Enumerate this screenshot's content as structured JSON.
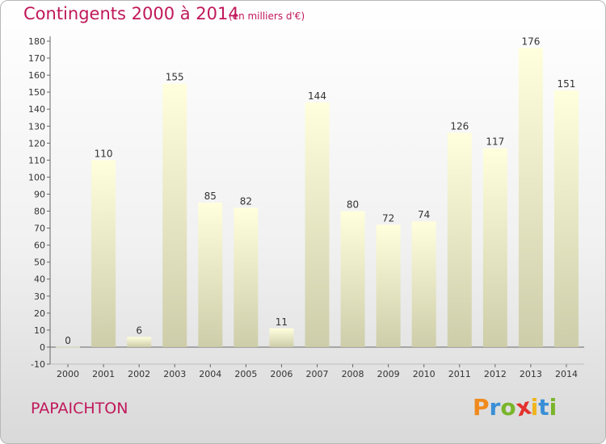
{
  "header": {
    "title": "Contingents 2000 à 2014",
    "subtitle": "(en milliers d'€)"
  },
  "footer": {
    "place": "PAPAICHTON",
    "logo_letters": [
      {
        "ch": "P",
        "color": "#f08a1c"
      },
      {
        "ch": "r",
        "color": "#3a8fd6"
      },
      {
        "ch": "o",
        "color": "#79b52a"
      },
      {
        "ch": "x",
        "color": "#e3312d"
      },
      {
        "ch": "i",
        "color": "#f0b41c"
      },
      {
        "ch": "t",
        "color": "#3a8fd6"
      },
      {
        "ch": "i",
        "color": "#79b52a"
      }
    ]
  },
  "chart_data": {
    "type": "bar",
    "title": "Contingents 2000 à 2014",
    "subtitle": "(en milliers d'€)",
    "categories": [
      "2000",
      "2001",
      "2002",
      "2003",
      "2004",
      "2005",
      "2006",
      "2007",
      "2008",
      "2009",
      "2010",
      "2011",
      "2012",
      "2013",
      "2014"
    ],
    "values": [
      0,
      110,
      6,
      155,
      85,
      82,
      11,
      144,
      80,
      72,
      74,
      126,
      117,
      176,
      151
    ],
    "ylim": [
      -10,
      180
    ],
    "ytick_step": 10,
    "grid": false,
    "bar_color_top": "#ffffdd",
    "bar_color_bottom": "#cdcdaa",
    "title_color": "#c0185a"
  }
}
